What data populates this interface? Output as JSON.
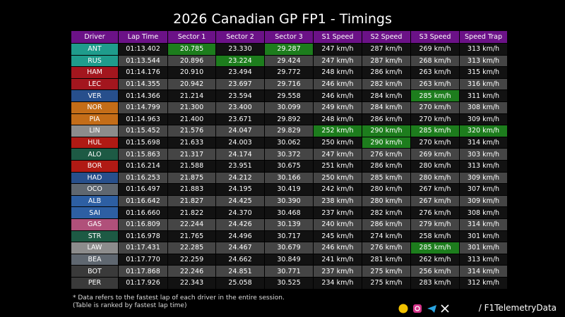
{
  "header": {
    "title": "2026 Canadian GP FP1 - Timings"
  },
  "table": {
    "columns": [
      "Driver",
      "Lap Time",
      "Sector 1",
      "Sector 2",
      "Sector 3",
      "S1 Speed",
      "S2 Speed",
      "S3 Speed",
      "Speed Trap"
    ],
    "rows": [
      [
        "ANT",
        "01:13.402",
        "20.785",
        "23.330",
        "29.287",
        "247 km/h",
        "287 km/h",
        "269 km/h",
        "313 km/h"
      ],
      [
        "RUS",
        "01:13.544",
        "20.896",
        "23.224",
        "29.424",
        "247 km/h",
        "287 km/h",
        "268 km/h",
        "313 km/h"
      ],
      [
        "HAM",
        "01:14.176",
        "20.910",
        "23.494",
        "29.772",
        "248 km/h",
        "286 km/h",
        "263 km/h",
        "315 km/h"
      ],
      [
        "LEC",
        "01:14.355",
        "20.942",
        "23.697",
        "29.716",
        "246 km/h",
        "282 km/h",
        "263 km/h",
        "316 km/h"
      ],
      [
        "VER",
        "01:14.366",
        "21.214",
        "23.594",
        "29.558",
        "246 km/h",
        "284 km/h",
        "285 km/h",
        "311 km/h"
      ],
      [
        "NOR",
        "01:14.799",
        "21.300",
        "23.400",
        "30.099",
        "249 km/h",
        "284 km/h",
        "270 km/h",
        "308 km/h"
      ],
      [
        "PIA",
        "01:14.963",
        "21.400",
        "23.671",
        "29.892",
        "248 km/h",
        "286 km/h",
        "270 km/h",
        "309 km/h"
      ],
      [
        "LIN",
        "01:15.452",
        "21.576",
        "24.047",
        "29.829",
        "252 km/h",
        "290 km/h",
        "285 km/h",
        "320 km/h"
      ],
      [
        "HUL",
        "01:15.698",
        "21.633",
        "24.003",
        "30.062",
        "250 km/h",
        "290 km/h",
        "270 km/h",
        "314 km/h"
      ],
      [
        "ALO",
        "01:15.863",
        "21.317",
        "24.174",
        "30.372",
        "247 km/h",
        "276 km/h",
        "269 km/h",
        "303 km/h"
      ],
      [
        "BOR",
        "01:16.214",
        "21.588",
        "23.951",
        "30.675",
        "251 km/h",
        "286 km/h",
        "280 km/h",
        "313 km/h"
      ],
      [
        "HAD",
        "01:16.253",
        "21.875",
        "24.212",
        "30.166",
        "250 km/h",
        "285 km/h",
        "280 km/h",
        "309 km/h"
      ],
      [
        "OCO",
        "01:16.497",
        "21.883",
        "24.195",
        "30.419",
        "242 km/h",
        "280 km/h",
        "267 km/h",
        "307 km/h"
      ],
      [
        "ALB",
        "01:16.642",
        "21.827",
        "24.425",
        "30.390",
        "238 km/h",
        "280 km/h",
        "267 km/h",
        "309 km/h"
      ],
      [
        "SAI",
        "01:16.660",
        "21.822",
        "24.370",
        "30.468",
        "237 km/h",
        "282 km/h",
        "276 km/h",
        "308 km/h"
      ],
      [
        "GAS",
        "01:16.809",
        "22.244",
        "24.426",
        "30.139",
        "240 km/h",
        "286 km/h",
        "279 km/h",
        "314 km/h"
      ],
      [
        "STR",
        "01:16.978",
        "21.765",
        "24.496",
        "30.717",
        "245 km/h",
        "274 km/h",
        "258 km/h",
        "301 km/h"
      ],
      [
        "LAW",
        "01:17.431",
        "22.285",
        "24.467",
        "30.679",
        "246 km/h",
        "276 km/h",
        "285 km/h",
        "301 km/h"
      ],
      [
        "BEA",
        "01:17.770",
        "22.259",
        "24.662",
        "30.849",
        "241 km/h",
        "281 km/h",
        "262 km/h",
        "313 km/h"
      ],
      [
        "BOT",
        "01:17.868",
        "22.246",
        "24.851",
        "30.771",
        "237 km/h",
        "275 km/h",
        "256 km/h",
        "314 km/h"
      ],
      [
        "PER",
        "01:17.926",
        "22.343",
        "25.058",
        "30.525",
        "234 km/h",
        "275 km/h",
        "283 km/h",
        "312 km/h"
      ]
    ],
    "team_colors": [
      "#1f9c8c",
      "#1f9c8c",
      "#a3161e",
      "#a3161e",
      "#274f8c",
      "#c46d18",
      "#c46d18",
      "#8c8c8c",
      "#b01a14",
      "#1d5a44",
      "#b01a14",
      "#274f8c",
      "#5f6770",
      "#2d5fa3",
      "#2d5fa3",
      "#b0507a",
      "#1d5a44",
      "#8c8c8c",
      "#5f6770",
      "#3a3a3a",
      "#3a3a3a"
    ],
    "fastest_cells": [
      [
        0,
        2
      ],
      [
        0,
        4
      ],
      [
        1,
        3
      ],
      [
        4,
        7
      ],
      [
        7,
        5
      ],
      [
        7,
        6
      ],
      [
        7,
        7
      ],
      [
        7,
        8
      ],
      [
        8,
        6
      ],
      [
        17,
        7
      ]
    ]
  },
  "footer": {
    "notes": [
      "* Data refers to the fastest lap of each driver in the entire session.",
      "(Table is ranked by fastest lap time)"
    ],
    "handle": "/ F1TelemetryData"
  }
}
